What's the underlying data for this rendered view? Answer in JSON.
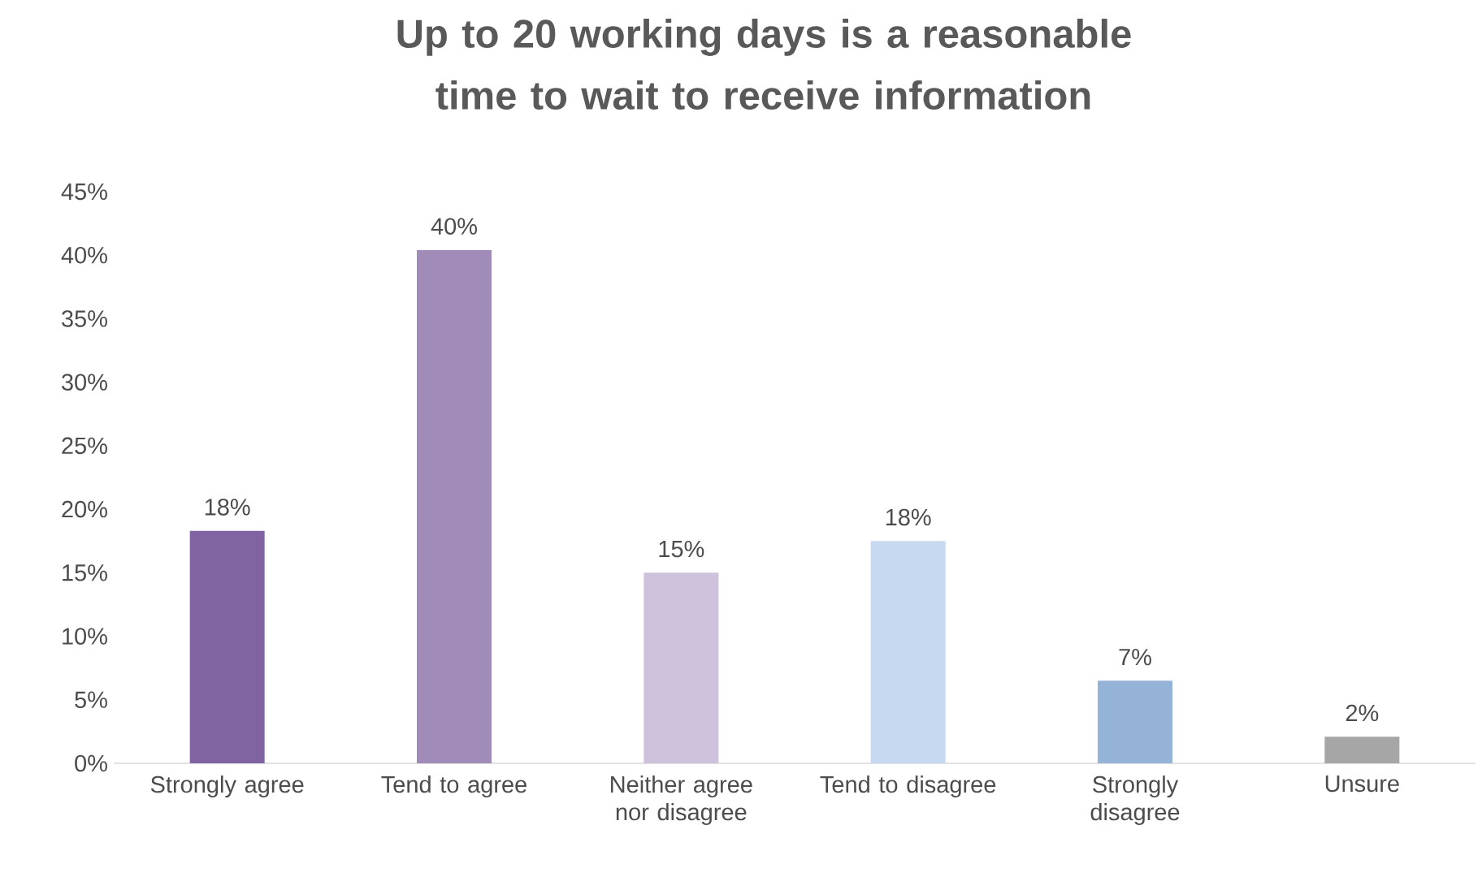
{
  "chart_data": {
    "type": "bar",
    "title": "Up to 20 working days is a reasonable time to wait to receive information",
    "categories": [
      "Strongly agree",
      "Tend to agree",
      "Neither agree nor disagree",
      "Tend to disagree",
      "Strongly disagree",
      "Unsure"
    ],
    "values": [
      18.3,
      40.4,
      15.0,
      17.5,
      6.5,
      2.1
    ],
    "value_labels": [
      "18%",
      "40%",
      "15%",
      "18%",
      "7%",
      "2%"
    ],
    "colors": [
      "#8064a2",
      "#a18bb9",
      "#cdc1dc",
      "#c6d9f1",
      "#95b3d7",
      "#a6a6a6"
    ],
    "ylim": [
      0,
      45
    ],
    "yticks": [
      {
        "value": 0,
        "label": "0%"
      },
      {
        "value": 5,
        "label": "5%"
      },
      {
        "value": 10,
        "label": "10%"
      },
      {
        "value": 15,
        "label": "15%"
      },
      {
        "value": 20,
        "label": "20%"
      },
      {
        "value": 25,
        "label": "25%"
      },
      {
        "value": 30,
        "label": "30%"
      },
      {
        "value": 35,
        "label": "35%"
      },
      {
        "value": 40,
        "label": "40%"
      },
      {
        "value": 45,
        "label": "45%"
      }
    ],
    "grid": false
  }
}
